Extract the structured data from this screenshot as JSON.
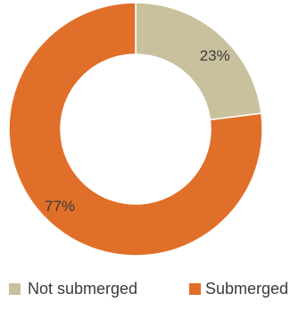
{
  "chart_data": {
    "type": "pie",
    "donut": true,
    "slices": [
      {
        "label": "Not submerged",
        "value": 23,
        "display": "23%",
        "color": "#c9c19d"
      },
      {
        "label": "Submerged",
        "value": 77,
        "display": "77%",
        "color": "#e06f2a"
      }
    ],
    "legend": {
      "position": "bottom",
      "entries": [
        "Not submerged",
        "Submerged"
      ]
    }
  }
}
